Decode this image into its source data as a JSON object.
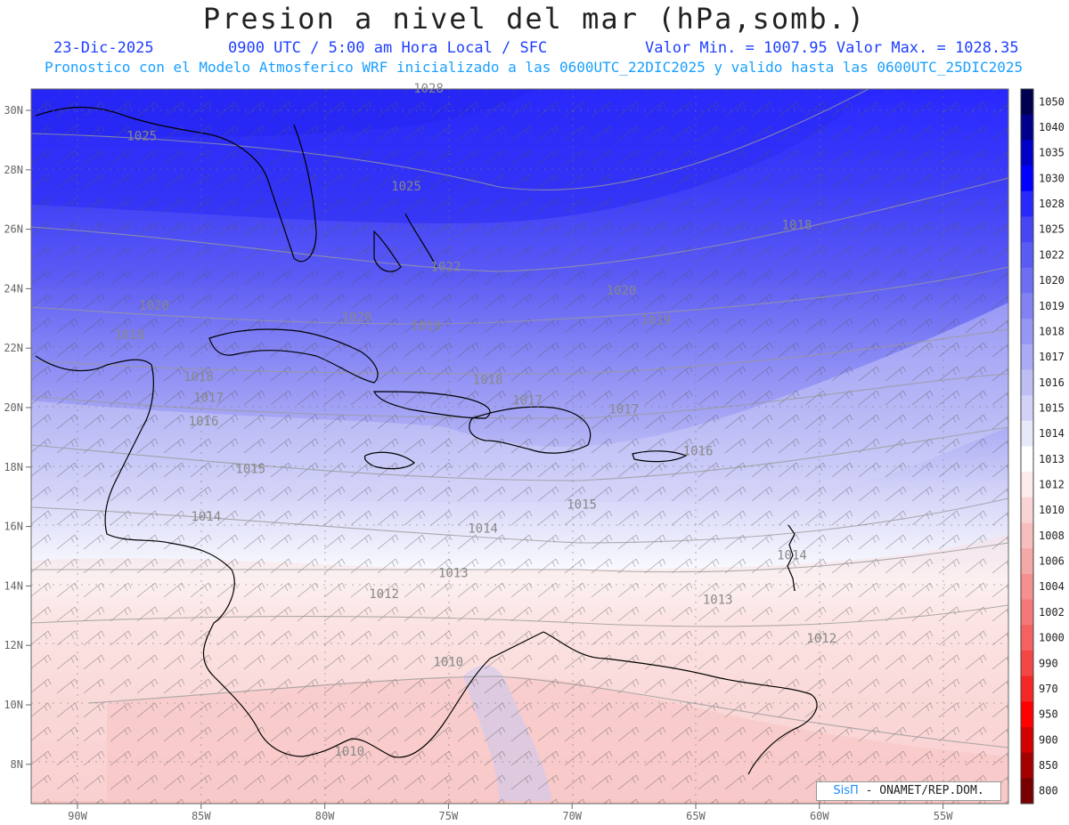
{
  "title": "Presion a nivel del mar (hPa,somb.)",
  "date": "23-Dic-2025",
  "time": "0900 UTC / 5:00 am Hora Local / SFC",
  "minmax": "Valor Min. = 1007.95  Valor Max. = 1028.35",
  "model_line": "Pronostico con el Modelo Atmosferico WRF inicializado a las 0600UTC_22DIC2025 y valido hasta las  0600UTC_25DIC2025",
  "credit": {
    "logo": "SisΠ",
    "text": " - ONAMET/REP.DOM."
  },
  "lat_labels": [
    "30N",
    "28N",
    "26N",
    "24N",
    "22N",
    "20N",
    "18N",
    "16N",
    "14N",
    "12N",
    "10N",
    "8N"
  ],
  "lon_labels": [
    "90W",
    "85W",
    "80W",
    "75W",
    "70W",
    "65W",
    "60W",
    "55W"
  ],
  "colorbar": [
    {
      "label": "1050",
      "color": "#000050"
    },
    {
      "label": "1040",
      "color": "#00008c"
    },
    {
      "label": "1035",
      "color": "#0000c8"
    },
    {
      "label": "1030",
      "color": "#0000ff"
    },
    {
      "label": "1028",
      "color": "#2828ff"
    },
    {
      "label": "1025",
      "color": "#4646f5"
    },
    {
      "label": "1022",
      "color": "#5a5af5"
    },
    {
      "label": "1020",
      "color": "#6e6ef5"
    },
    {
      "label": "1019",
      "color": "#8282f5"
    },
    {
      "label": "1018",
      "color": "#9696f5"
    },
    {
      "label": "1017",
      "color": "#aaaaf5"
    },
    {
      "label": "1016",
      "color": "#bebef5"
    },
    {
      "label": "1015",
      "color": "#d2d2f8"
    },
    {
      "label": "1014",
      "color": "#e8e8fb"
    },
    {
      "label": "1013",
      "color": "#ffffff"
    },
    {
      "label": "1012",
      "color": "#fdeaea"
    },
    {
      "label": "1010",
      "color": "#fad4d4"
    },
    {
      "label": "1008",
      "color": "#f8bebe"
    },
    {
      "label": "1006",
      "color": "#f5a8a8"
    },
    {
      "label": "1004",
      "color": "#f59090"
    },
    {
      "label": "1002",
      "color": "#f57878"
    },
    {
      "label": "1000",
      "color": "#f56060"
    },
    {
      "label": "990",
      "color": "#f54646"
    },
    {
      "label": "970",
      "color": "#f52828"
    },
    {
      "label": "950",
      "color": "#ff0000"
    },
    {
      "label": "900",
      "color": "#d20000"
    },
    {
      "label": "850",
      "color": "#a50000"
    },
    {
      "label": "800",
      "color": "#780000"
    }
  ],
  "isobar_labels": [
    {
      "text": "1028",
      "lon": -75.8,
      "lat": 30.6
    },
    {
      "text": "1025",
      "lon": -87.4,
      "lat": 29.0
    },
    {
      "text": "1025",
      "lon": -76.7,
      "lat": 27.3
    },
    {
      "text": "1022",
      "lon": -75.1,
      "lat": 24.6
    },
    {
      "text": "1020",
      "lon": -86.9,
      "lat": 23.3
    },
    {
      "text": "1020",
      "lon": -68.0,
      "lat": 23.8
    },
    {
      "text": "1020",
      "lon": -78.7,
      "lat": 22.9
    },
    {
      "text": "1019",
      "lon": -75.9,
      "lat": 22.6
    },
    {
      "text": "1019",
      "lon": -66.6,
      "lat": 22.8
    },
    {
      "text": "1018",
      "lon": -87.9,
      "lat": 22.3
    },
    {
      "text": "1018",
      "lon": -85.1,
      "lat": 20.9
    },
    {
      "text": "1018",
      "lon": -73.4,
      "lat": 20.8
    },
    {
      "text": "1018",
      "lon": -60.9,
      "lat": 26.0
    },
    {
      "text": "1017",
      "lon": -84.7,
      "lat": 20.2
    },
    {
      "text": "1017",
      "lon": -71.8,
      "lat": 20.1
    },
    {
      "text": "1017",
      "lon": -67.9,
      "lat": 19.8
    },
    {
      "text": "1016",
      "lon": -84.9,
      "lat": 19.4
    },
    {
      "text": "1016",
      "lon": -64.9,
      "lat": 18.4
    },
    {
      "text": "1015",
      "lon": -83.0,
      "lat": 17.8
    },
    {
      "text": "1015",
      "lon": -69.6,
      "lat": 16.6
    },
    {
      "text": "1014",
      "lon": -84.8,
      "lat": 16.2
    },
    {
      "text": "1014",
      "lon": -73.6,
      "lat": 15.8
    },
    {
      "text": "1014",
      "lon": -61.1,
      "lat": 14.9
    },
    {
      "text": "1013",
      "lon": -74.8,
      "lat": 14.3
    },
    {
      "text": "1013",
      "lon": -64.1,
      "lat": 13.4
    },
    {
      "text": "1012",
      "lon": -77.6,
      "lat": 13.6
    },
    {
      "text": "1012",
      "lon": -59.9,
      "lat": 12.1
    },
    {
      "text": "1010",
      "lon": -75.0,
      "lat": 11.3
    },
    {
      "text": "1010",
      "lon": -79.0,
      "lat": 8.3
    }
  ]
}
